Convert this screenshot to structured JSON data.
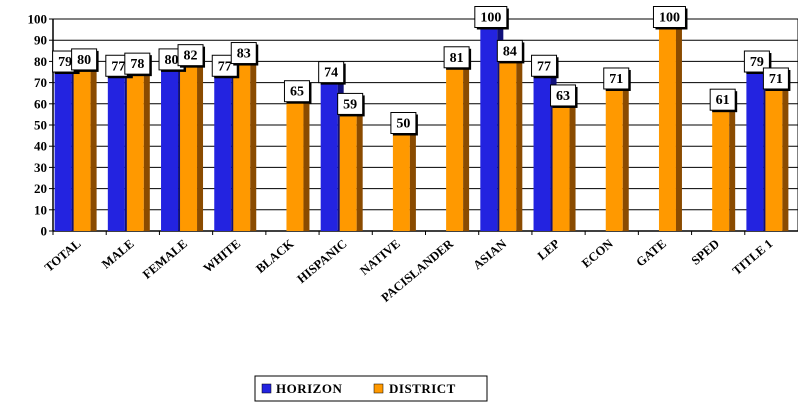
{
  "chart_data": {
    "type": "bar",
    "categories": [
      "TOTAL",
      "MALE",
      "FEMALE",
      "WHITE",
      "BLACK",
      "HISPANIC",
      "NATIVE",
      "PACISLANDER",
      "ASIAN",
      "LEP",
      "ECON",
      "GATE",
      "SPED",
      "TITLE 1"
    ],
    "series": [
      {
        "name": "HORIZON",
        "color": "#2323e0",
        "shade": "#10107a",
        "values": [
          79,
          77,
          80,
          77,
          null,
          74,
          null,
          null,
          100,
          77,
          null,
          null,
          null,
          79
        ]
      },
      {
        "name": "DISTRICT",
        "color": "#ff9900",
        "shade": "#8a4b00",
        "values": [
          80,
          78,
          82,
          83,
          65,
          59,
          50,
          81,
          84,
          63,
          71,
          100,
          61,
          71
        ]
      }
    ],
    "y_ticks": [
      "0",
      "10",
      "20",
      "30",
      "40",
      "50",
      "60",
      "70",
      "80",
      "90",
      "100"
    ],
    "ylim": [
      0,
      100
    ],
    "grid": true,
    "legend_position": "bottom"
  }
}
